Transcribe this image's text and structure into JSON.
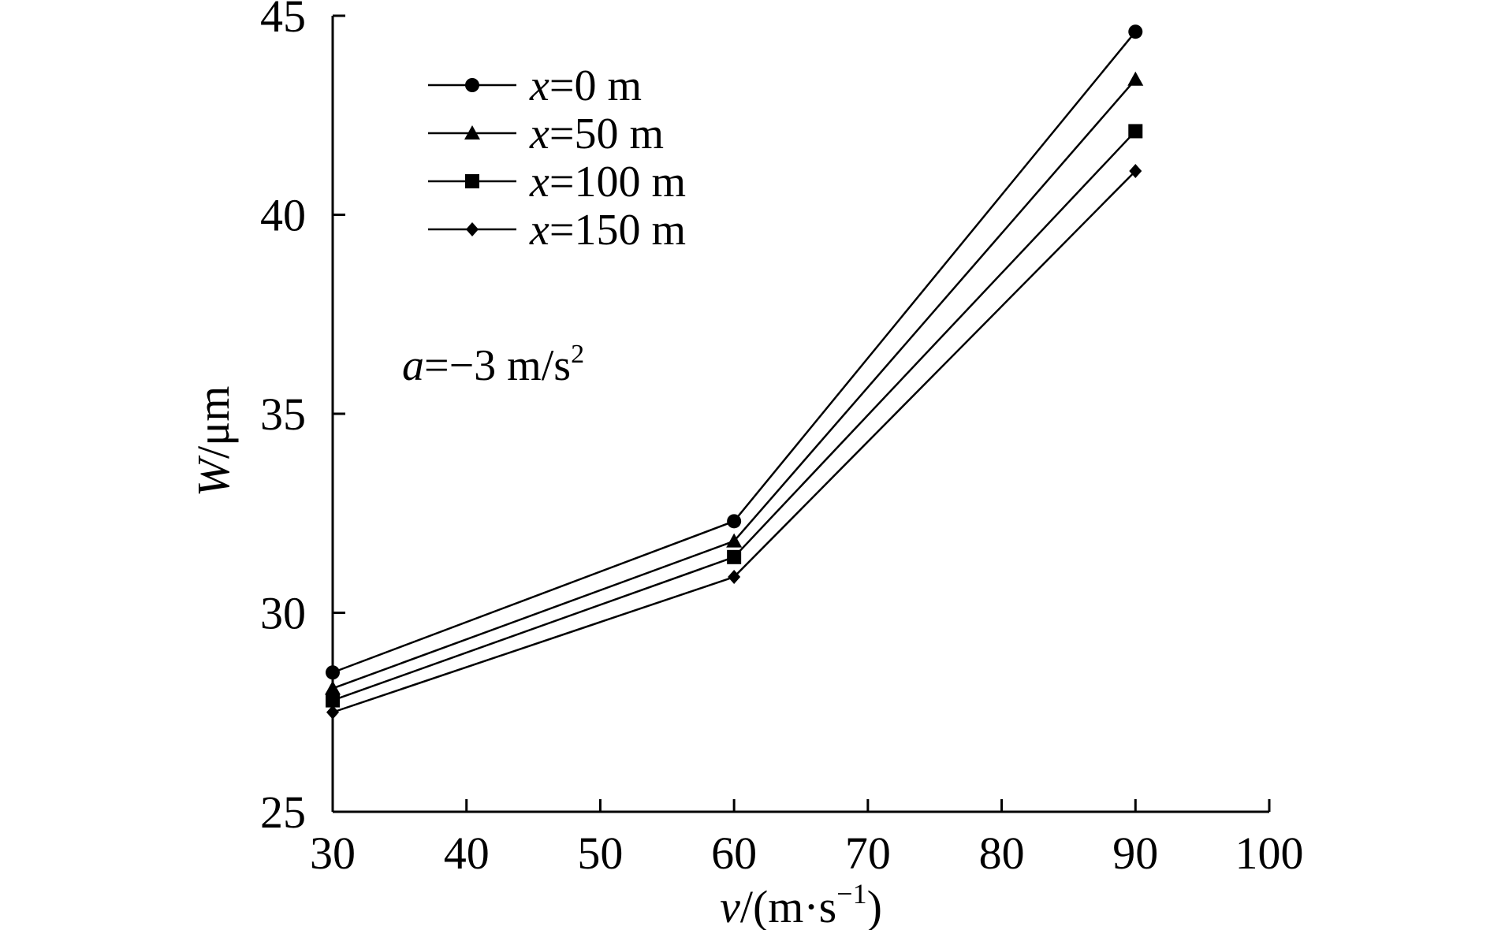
{
  "chart_data": {
    "type": "line",
    "x": [
      30,
      60,
      90
    ],
    "series": [
      {
        "name_var": "x",
        "name_rest": "=0 m",
        "marker": "circle",
        "values": [
          28.5,
          32.3,
          44.6
        ]
      },
      {
        "name_var": "x",
        "name_rest": "=50 m",
        "marker": "triangle",
        "values": [
          28.1,
          31.8,
          43.4
        ]
      },
      {
        "name_var": "x",
        "name_rest": "=100 m",
        "marker": "square",
        "values": [
          27.8,
          31.4,
          42.1
        ]
      },
      {
        "name_var": "x",
        "name_rest": "=150 m",
        "marker": "diamond",
        "values": [
          27.5,
          30.9,
          41.1
        ]
      }
    ],
    "xlim": [
      30,
      100
    ],
    "ylim": [
      25,
      45
    ],
    "xticks": [
      30,
      40,
      50,
      60,
      70,
      80,
      90,
      100
    ],
    "yticks": [
      25,
      30,
      35,
      40,
      45
    ],
    "xlabel": {
      "var": "v",
      "pre": "/(m·s",
      "sup": "−1",
      "post": ")"
    },
    "ylabel": {
      "var": "W",
      "rest": "/μm"
    },
    "annotation": {
      "var": "a",
      "rest": "=−3 m/s",
      "sup": "2"
    },
    "legend_position": "top-left",
    "grid": false,
    "line_color": "#000000"
  }
}
